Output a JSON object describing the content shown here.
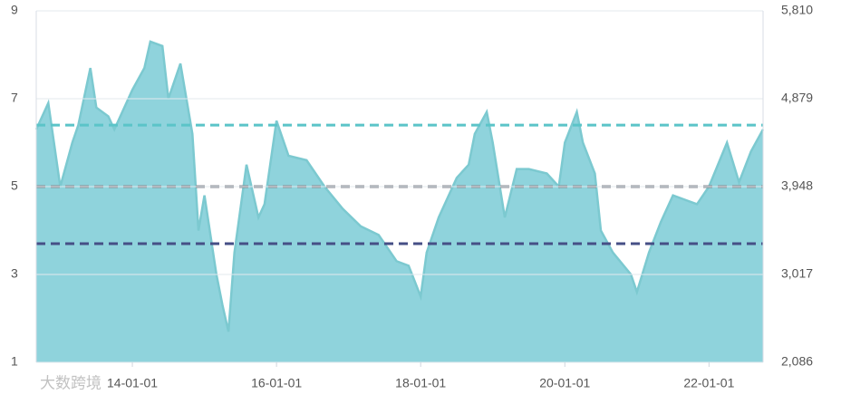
{
  "chart_data": {
    "type": "area",
    "watermark": "大数跨境",
    "xlim": [
      "12-09-01",
      "22-10-01"
    ],
    "xticks": [
      "14-01-01",
      "16-01-01",
      "18-01-01",
      "20-01-01",
      "22-01-01"
    ],
    "ylim": [
      1,
      9
    ],
    "yticks": [
      1,
      3,
      5,
      7,
      9
    ],
    "y2lim": [
      2086,
      5810
    ],
    "y2ticks": [
      {
        "value": 2086,
        "label": "2,086"
      },
      {
        "value": 3017,
        "label": "3,017"
      },
      {
        "value": 3948,
        "label": "3,948"
      },
      {
        "value": 4879,
        "label": "4,879"
      },
      {
        "value": 5810,
        "label": "5,810"
      }
    ],
    "grid": true,
    "x": [
      "12-09-01",
      "12-11-01",
      "13-01-01",
      "13-03-01",
      "13-04-01",
      "13-06-01",
      "13-07-01",
      "13-09-01",
      "13-10-01",
      "14-01-01",
      "14-03-01",
      "14-04-01",
      "14-06-01",
      "14-07-01",
      "14-09-01",
      "14-11-01",
      "14-12-01",
      "15-01-01",
      "15-03-01",
      "15-04-01",
      "15-05-01",
      "15-06-01",
      "15-08-01",
      "15-10-01",
      "15-11-01",
      "16-01-01",
      "16-03-01",
      "16-06-01",
      "16-09-01",
      "16-12-01",
      "17-03-01",
      "17-06-01",
      "17-09-01",
      "17-11-01",
      "18-01-01",
      "18-02-01",
      "18-04-01",
      "18-07-01",
      "18-09-01",
      "18-10-01",
      "18-12-01",
      "19-01-01",
      "19-03-01",
      "19-05-01",
      "19-07-01",
      "19-10-01",
      "19-12-01",
      "20-01-01",
      "20-03-01",
      "20-04-01",
      "20-06-01",
      "20-07-01",
      "20-09-01",
      "20-12-01",
      "21-01-01",
      "21-03-01",
      "21-05-01",
      "21-07-01",
      "21-11-01",
      "22-01-01",
      "22-04-01",
      "22-06-01",
      "22-08-01",
      "22-10-01"
    ],
    "series": [
      {
        "color": "#8fd3dc",
        "line_color": "#7cc9d0",
        "values": [
          6.3,
          6.9,
          5.0,
          6.0,
          6.4,
          7.7,
          6.8,
          6.6,
          6.3,
          7.2,
          7.7,
          8.3,
          8.2,
          7.0,
          7.8,
          6.2,
          4.0,
          4.8,
          3.0,
          2.3,
          1.7,
          3.5,
          5.5,
          4.3,
          4.6,
          6.5,
          5.7,
          5.6,
          5.0,
          4.5,
          4.1,
          3.9,
          3.3,
          3.2,
          2.5,
          3.5,
          4.3,
          5.2,
          5.5,
          6.2,
          6.7,
          6.0,
          4.3,
          5.4,
          5.4,
          5.3,
          5.0,
          6.0,
          6.7,
          6.0,
          5.3,
          4.0,
          3.5,
          3.0,
          2.6,
          3.5,
          4.2,
          4.8,
          4.6,
          5.0,
          6.0,
          5.1,
          5.8,
          6.3
        ]
      }
    ],
    "reference_lines": [
      {
        "value": 6.4,
        "color": "#5bc4c8"
      },
      {
        "value": 5.0,
        "color": "#858a90"
      },
      {
        "value": 3.7,
        "color": "#464f86"
      }
    ]
  }
}
